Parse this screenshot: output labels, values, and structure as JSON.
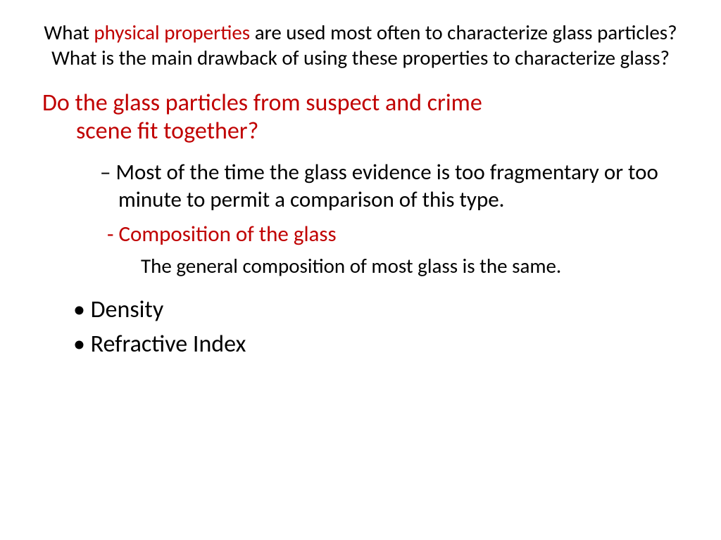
{
  "colors": {
    "accent": "#c00000",
    "text": "#000000",
    "bg": "#ffffff"
  },
  "title": {
    "pre": "What ",
    "hl": "physical properties",
    "post": " are used most often to characterize glass particles? What is the main drawback of using these properties to characterize glass?"
  },
  "question": {
    "line1": "Do the glass particles from suspect and crime",
    "line2": "scene fit together?"
  },
  "sub_dash": "Most of the time the glass evidence is too fragmentary or too minute to permit a comparison of this type.",
  "sub_red": "Composition of the glass",
  "sub_body": "The general composition of most glass is the same.",
  "bullets": {
    "b1": "Density",
    "b2": "Refractive Index"
  }
}
